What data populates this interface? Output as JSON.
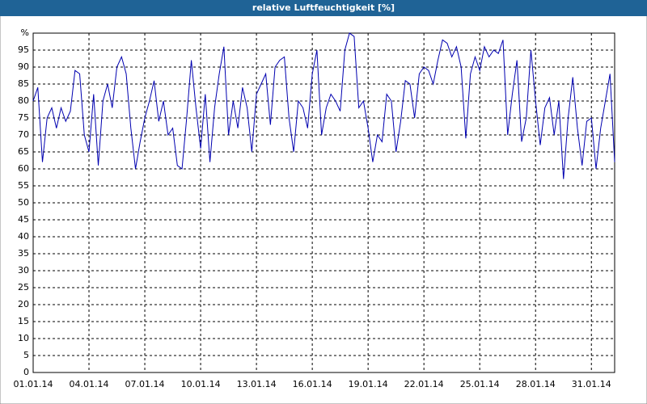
{
  "chart_data": {
    "type": "line",
    "title": "relative Luftfeuchtigkeit [%]",
    "color": "#0000b0",
    "grid": true,
    "x": [
      0,
      0.25,
      0.5,
      0.75,
      1,
      1.25,
      1.5,
      1.75,
      2,
      2.25,
      2.5,
      2.75,
      3,
      3.25,
      3.5,
      3.75,
      4,
      4.25,
      4.5,
      4.75,
      5,
      5.25,
      5.5,
      5.75,
      6,
      6.25,
      6.5,
      6.75,
      7,
      7.25,
      7.5,
      7.75,
      8,
      8.25,
      8.5,
      8.75,
      9,
      9.25,
      9.5,
      9.75,
      10,
      10.25,
      10.5,
      10.75,
      11,
      11.25,
      11.5,
      11.75,
      12,
      12.25,
      12.5,
      12.75,
      13,
      13.25,
      13.5,
      13.75,
      14,
      14.25,
      14.5,
      14.75,
      15,
      15.25,
      15.5,
      15.75,
      16,
      16.25,
      16.5,
      16.75,
      17,
      17.25,
      17.5,
      17.75,
      18,
      18.25,
      18.5,
      18.75,
      19,
      19.25,
      19.5,
      19.75,
      20,
      20.25,
      20.5,
      20.75,
      21,
      21.25,
      21.5,
      21.75,
      22,
      22.25,
      22.5,
      22.75,
      23,
      23.25,
      23.5,
      23.75,
      24,
      24.25,
      24.5,
      24.75,
      25,
      25.25,
      25.5,
      25.75,
      26,
      26.25,
      26.5,
      26.75,
      27,
      27.25,
      27.5,
      27.75,
      28,
      28.25,
      28.5,
      28.75,
      29,
      29.25,
      29.5,
      29.75,
      30,
      30.25,
      30.5,
      30.75,
      31,
      31.25
    ],
    "values": [
      80,
      84,
      62,
      75,
      78,
      72,
      78,
      74,
      77,
      89,
      88,
      70,
      65,
      82,
      61,
      80,
      85,
      78,
      90,
      93,
      88,
      72,
      60,
      68,
      75,
      80,
      86,
      74,
      80,
      70,
      72,
      61,
      60,
      75,
      92,
      78,
      66,
      82,
      62,
      78,
      88,
      96,
      70,
      80,
      72,
      84,
      78,
      65,
      82,
      85,
      88,
      73,
      90,
      92,
      93,
      75,
      65,
      80,
      78,
      72,
      88,
      95,
      70,
      78,
      82,
      80,
      77,
      95,
      100,
      99,
      78,
      80,
      72,
      62,
      70,
      68,
      82,
      80,
      65,
      74,
      86,
      85,
      75,
      88,
      90,
      89,
      85,
      92,
      98,
      97,
      93,
      96,
      90,
      69,
      88,
      93,
      89,
      96,
      93,
      95,
      94,
      98,
      70,
      82,
      92,
      68,
      75,
      95,
      80,
      67,
      78,
      81,
      70,
      80,
      57,
      75,
      87,
      72,
      61,
      74,
      75,
      60,
      72,
      80,
      88,
      62
    ],
    "xlim": [
      0,
      31.25
    ],
    "xticks": [
      {
        "value": 0,
        "label": "01.01.14"
      },
      {
        "value": 3,
        "label": "04.01.14"
      },
      {
        "value": 6,
        "label": "07.01.14"
      },
      {
        "value": 9,
        "label": "10.01.14"
      },
      {
        "value": 12,
        "label": "13.01.14"
      },
      {
        "value": 15,
        "label": "16.01.14"
      },
      {
        "value": 18,
        "label": "19.01.14"
      },
      {
        "value": 21,
        "label": "22.01.14"
      },
      {
        "value": 24,
        "label": "25.01.14"
      },
      {
        "value": 27,
        "label": "28.01.14"
      },
      {
        "value": 30,
        "label": "31.01.14"
      }
    ],
    "ylim": [
      0,
      100
    ],
    "yticks": [
      0,
      5,
      10,
      15,
      20,
      25,
      30,
      35,
      40,
      45,
      50,
      55,
      60,
      65,
      70,
      75,
      80,
      85,
      90,
      95,
      {
        "value": 100,
        "label": "%"
      }
    ]
  }
}
